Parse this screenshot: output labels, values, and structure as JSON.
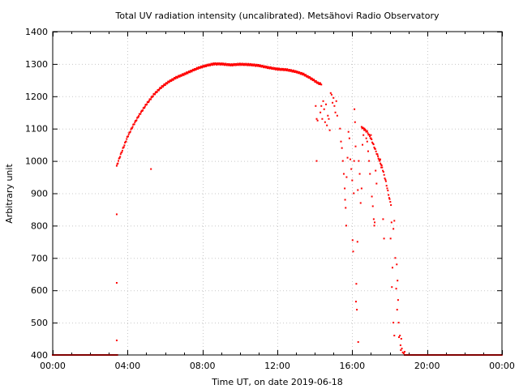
{
  "chart_data": {
    "type": "scatter",
    "title": "Total UV radiation intensity (uncalibrated). Metsähovi Radio Observatory",
    "xlabel": "Time UT, on date 2019-06-18",
    "ylabel": "Arbitrary unit",
    "xlim": [
      0,
      24
    ],
    "ylim": [
      400,
      1400
    ],
    "x_ticks": [
      0,
      4,
      8,
      12,
      16,
      20,
      24
    ],
    "x_tick_labels": [
      "00:00",
      "04:00",
      "08:00",
      "12:00",
      "16:00",
      "20:00",
      "00:00"
    ],
    "y_ticks": [
      400,
      500,
      600,
      700,
      800,
      900,
      1000,
      1100,
      1200,
      1300,
      1400
    ],
    "grid": true,
    "marker_color": "#ff0000",
    "baseline": {
      "value": 400,
      "ranges": [
        [
          0,
          3.45
        ],
        [
          18.8,
          24
        ]
      ]
    },
    "arc_knots": [
      [
        3.45,
        990
      ],
      [
        3.6,
        1015
      ],
      [
        3.8,
        1045
      ],
      [
        4.0,
        1075
      ],
      [
        4.3,
        1110
      ],
      [
        4.6,
        1140
      ],
      [
        5.0,
        1175
      ],
      [
        5.4,
        1205
      ],
      [
        5.8,
        1228
      ],
      [
        6.2,
        1245
      ],
      [
        6.6,
        1258
      ],
      [
        7.0,
        1268
      ],
      [
        7.4,
        1278
      ],
      [
        7.8,
        1288
      ],
      [
        8.2,
        1295
      ],
      [
        8.6,
        1300
      ],
      [
        9.0,
        1300
      ],
      [
        9.5,
        1297
      ],
      [
        10.0,
        1299
      ],
      [
        10.5,
        1298
      ],
      [
        11.0,
        1295
      ],
      [
        11.5,
        1289
      ],
      [
        12.0,
        1284
      ],
      [
        12.5,
        1282
      ],
      [
        13.0,
        1276
      ],
      [
        13.4,
        1268
      ],
      [
        13.8,
        1255
      ],
      [
        14.2,
        1240
      ],
      [
        14.35,
        1238
      ]
    ],
    "descent_knots": [
      [
        16.5,
        1105
      ],
      [
        16.8,
        1090
      ],
      [
        17.0,
        1070
      ],
      [
        17.2,
        1040
      ],
      [
        17.4,
        1010
      ],
      [
        17.6,
        980
      ],
      [
        17.8,
        935
      ],
      [
        18.0,
        880
      ],
      [
        18.1,
        860
      ]
    ],
    "scatter_points": [
      [
        3.42,
        985
      ],
      [
        3.42,
        835
      ],
      [
        3.42,
        623
      ],
      [
        3.42,
        445
      ],
      [
        5.25,
        975
      ],
      [
        14.1,
        1000
      ],
      [
        14.05,
        1170
      ],
      [
        14.1,
        1130
      ],
      [
        14.15,
        1125
      ],
      [
        14.3,
        1150
      ],
      [
        14.35,
        1170
      ],
      [
        14.4,
        1130
      ],
      [
        14.45,
        1185
      ],
      [
        14.5,
        1160
      ],
      [
        14.55,
        1120
      ],
      [
        14.6,
        1175
      ],
      [
        14.65,
        1110
      ],
      [
        14.7,
        1140
      ],
      [
        14.75,
        1130
      ],
      [
        14.8,
        1095
      ],
      [
        14.85,
        1210
      ],
      [
        14.9,
        1205
      ],
      [
        14.95,
        1180
      ],
      [
        15.0,
        1195
      ],
      [
        15.05,
        1170
      ],
      [
        15.1,
        1150
      ],
      [
        15.15,
        1185
      ],
      [
        15.2,
        1140
      ],
      [
        15.35,
        1100
      ],
      [
        15.4,
        1060
      ],
      [
        15.45,
        1040
      ],
      [
        15.5,
        1000
      ],
      [
        15.55,
        960
      ],
      [
        15.6,
        915
      ],
      [
        15.62,
        880
      ],
      [
        15.65,
        855
      ],
      [
        15.68,
        800
      ],
      [
        15.7,
        950
      ],
      [
        15.75,
        1010
      ],
      [
        15.8,
        1090
      ],
      [
        15.85,
        1070
      ],
      [
        15.9,
        1005
      ],
      [
        15.95,
        975
      ],
      [
        16.0,
        940
      ],
      [
        16.02,
        755
      ],
      [
        16.05,
        720
      ],
      [
        16.08,
        900
      ],
      [
        16.1,
        1000
      ],
      [
        16.12,
        1160
      ],
      [
        16.15,
        1120
      ],
      [
        16.18,
        1045
      ],
      [
        16.2,
        565
      ],
      [
        16.22,
        620
      ],
      [
        16.25,
        540
      ],
      [
        16.28,
        750
      ],
      [
        16.3,
        910
      ],
      [
        16.32,
        440
      ],
      [
        16.35,
        1000
      ],
      [
        16.4,
        960
      ],
      [
        16.45,
        870
      ],
      [
        16.5,
        915
      ],
      [
        16.55,
        1050
      ],
      [
        16.6,
        1080
      ],
      [
        16.65,
        1100
      ],
      [
        16.7,
        1095
      ],
      [
        16.75,
        1070
      ],
      [
        16.8,
        1060
      ],
      [
        16.85,
        1030
      ],
      [
        16.9,
        1000
      ],
      [
        16.95,
        960
      ],
      [
        17.0,
        1080
      ],
      [
        17.05,
        890
      ],
      [
        17.1,
        860
      ],
      [
        17.15,
        820
      ],
      [
        17.18,
        800
      ],
      [
        17.2,
        810
      ],
      [
        17.25,
        970
      ],
      [
        17.3,
        930
      ],
      [
        17.35,
        1020
      ],
      [
        17.45,
        1000
      ],
      [
        17.5,
        1005
      ],
      [
        17.55,
        980
      ],
      [
        17.65,
        820
      ],
      [
        17.7,
        760
      ],
      [
        18.05,
        760
      ],
      [
        18.1,
        810
      ],
      [
        18.15,
        670
      ],
      [
        18.2,
        790
      ],
      [
        18.25,
        815
      ],
      [
        18.3,
        700
      ],
      [
        18.35,
        605
      ],
      [
        18.38,
        680
      ],
      [
        18.4,
        540
      ],
      [
        18.42,
        630
      ],
      [
        18.45,
        570
      ],
      [
        18.48,
        500
      ],
      [
        18.5,
        455
      ],
      [
        18.55,
        460
      ],
      [
        18.58,
        430
      ],
      [
        18.6,
        415
      ],
      [
        18.62,
        450
      ],
      [
        18.65,
        420
      ],
      [
        18.7,
        408
      ],
      [
        18.75,
        405
      ],
      [
        18.8,
        410
      ],
      [
        18.25,
        460
      ],
      [
        18.2,
        500
      ],
      [
        18.12,
        610
      ]
    ]
  }
}
